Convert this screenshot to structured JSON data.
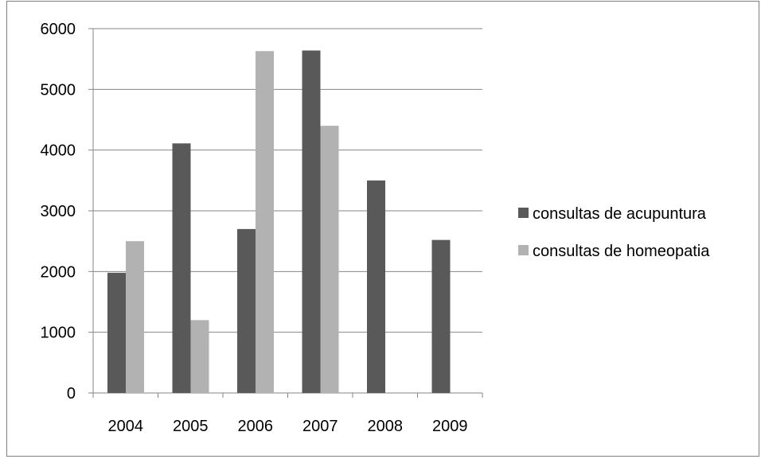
{
  "chart_data": {
    "type": "bar",
    "title": "",
    "xlabel": "",
    "ylabel": "",
    "categories": [
      "2004",
      "2005",
      "2006",
      "2007",
      "2008",
      "2009"
    ],
    "ylim": [
      0,
      6000
    ],
    "yticks": [
      "0",
      "1000",
      "2000",
      "3000",
      "4000",
      "5000",
      "6000"
    ],
    "grid": true,
    "legend_position": "right",
    "series": [
      {
        "name": "consultas de acupuntura",
        "color": "#595959",
        "values": [
          1980,
          4110,
          2700,
          5640,
          3500,
          2520
        ]
      },
      {
        "name": "consultas de homeopatia",
        "color": "#b2b2b2",
        "values": [
          2500,
          1200,
          5630,
          4400,
          null,
          null
        ]
      }
    ]
  }
}
